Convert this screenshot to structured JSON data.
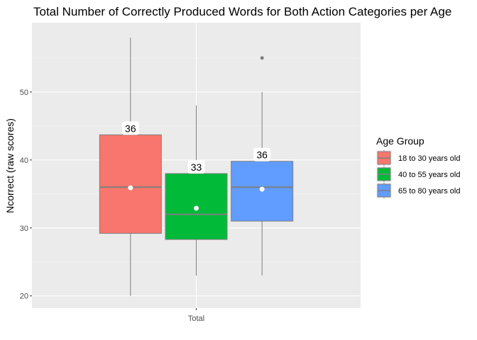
{
  "chart_data": {
    "type": "boxplot",
    "title": "Total Number of Correctly Produced Words for Both Action Categories per Age",
    "xlabel": "",
    "ylabel": "Ncorrect (raw scores)",
    "categories": [
      "Total"
    ],
    "ylim": [
      18.2,
      60.2
    ],
    "y_ticks": [
      20,
      30,
      40,
      50
    ],
    "grid": true,
    "legend": {
      "title": "Age Group",
      "position": "right"
    },
    "series": [
      {
        "name": "18 to 30 years old",
        "color": "#F8766D",
        "whisker_low": 20,
        "q1": 29.2,
        "median": 36,
        "q3": 43.7,
        "whisker_high": 58,
        "mean": 35.9,
        "mean_label": "36",
        "outliers": []
      },
      {
        "name": "40 to 55 years old",
        "color": "#00BA38",
        "whisker_low": 23,
        "q1": 28.3,
        "median": 32,
        "q3": 38,
        "whisker_high": 48,
        "mean": 32.9,
        "mean_label": "33",
        "outliers": []
      },
      {
        "name": "65 to 80 years old",
        "color": "#619CFF",
        "whisker_low": 23,
        "q1": 31,
        "median": 36,
        "q3": 39.8,
        "whisker_high": 50,
        "mean": 35.7,
        "mean_label": "36",
        "outliers": [
          55
        ]
      }
    ]
  }
}
